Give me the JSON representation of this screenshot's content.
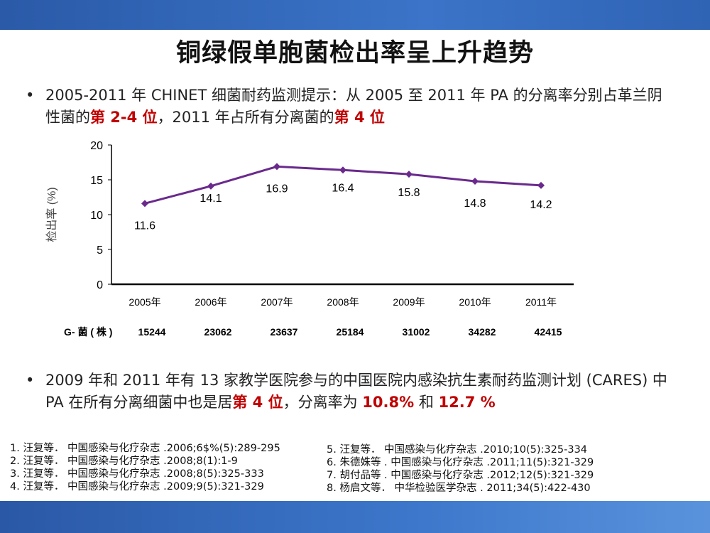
{
  "title": "铜绿假单胞菌检出率呈上升趋势",
  "bullet1": {
    "t1": "2005-2011 年 CHINET 细菌耐药监测提示：从 2005 至 2011 年 PA 的分离率分别占革兰阴性菌的",
    "r1": "第 2-4 位",
    "t2": "，2011 年占所有分离菌的",
    "r2": "第 4 位"
  },
  "bullet2": {
    "t1": "2009 年和 2011 年有 13 家教学医院参与的中国医院内感染抗生素耐药监测计划 (CARES) 中 PA 在所有分离细菌中也是居",
    "r1": "第 4 位",
    "t2": "，分离率为 ",
    "r2": "10.8%",
    "t3": " 和 ",
    "r3": "12.7 %"
  },
  "chart_data": {
    "type": "line",
    "categories": [
      "2005年",
      "2006年",
      "2007年",
      "2008年",
      "2009年",
      "2010年",
      "2011年"
    ],
    "values": [
      11.6,
      14.1,
      16.9,
      16.4,
      15.8,
      14.8,
      14.2
    ],
    "ylabel": "检出率 (%)",
    "ylim": [
      0,
      20
    ],
    "yticks": [
      0,
      5,
      10,
      15,
      20
    ],
    "color": "#6a2a8c",
    "grid": false,
    "row_label": "G- 菌 ( 株 )",
    "row_values": [
      "15244",
      "23062",
      "23637",
      "25184",
      "31002",
      "34282",
      "42415"
    ]
  },
  "refs_left": [
    "1. 汪复等． 中国感染与化疗杂志 .2006;6$%(5):289-295",
    "2. 汪复等． 中国感染与化疗杂志 .2008;8(1):1-9",
    "3. 汪复等． 中国感染与化疗杂志 .2008;8(5):325-333",
    "4. 汪复等． 中国感染与化疗杂志 .2009;9(5):321-329"
  ],
  "refs_right": [
    "5. 汪复等． 中国感染与化疗杂志 .2010;10(5):325-334",
    "6. 朱德姝等 . 中国感染与化疗杂志 .2011;11(5):321-329",
    "7. 胡付品等 . 中国感染与化疗杂志 .2012;12(5):321-329",
    "8. 杨启文等． 中华检验医学杂志 . 2011;34(5):422-430"
  ]
}
